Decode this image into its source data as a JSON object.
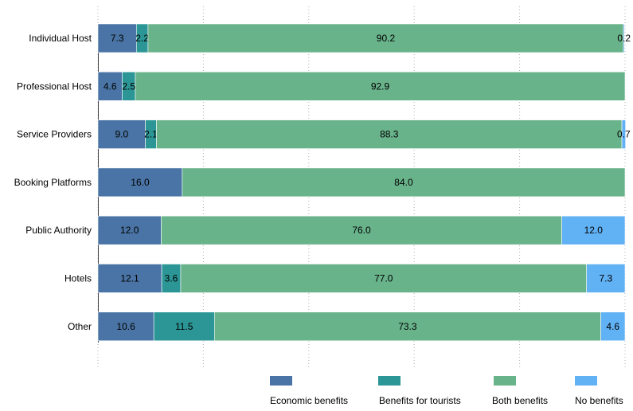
{
  "chart_data": {
    "type": "bar",
    "orientation": "horizontal",
    "stacked": true,
    "categories": [
      "Individual Host",
      "Professional Host",
      "Service Providers",
      "Booking Platforms",
      "Public Authority",
      "Hotels",
      "Other"
    ],
    "series": [
      {
        "name": "Economic benefits",
        "color": "#4a74a5",
        "values": [
          7.3,
          4.6,
          9.0,
          16.0,
          12.0,
          12.1,
          10.6
        ]
      },
      {
        "name": "Benefits for tourists",
        "color": "#2b9695",
        "values": [
          2.2,
          2.5,
          2.1,
          0,
          0,
          3.6,
          11.5
        ]
      },
      {
        "name": "Both benefits",
        "color": "#69b38b",
        "values": [
          90.2,
          92.9,
          88.3,
          84.0,
          76.0,
          77.0,
          73.3
        ]
      },
      {
        "name": "No benefits",
        "color": "#61b1f5",
        "values": [
          0.2,
          0,
          0.7,
          0,
          12.0,
          7.3,
          4.6
        ]
      }
    ],
    "xlim": [
      0,
      100
    ],
    "grid": true,
    "legend_position": "bottom",
    "title": "",
    "xlabel": "",
    "ylabel": ""
  }
}
